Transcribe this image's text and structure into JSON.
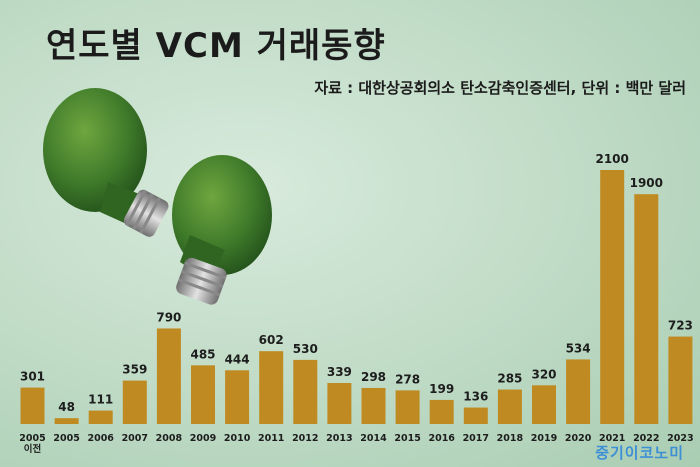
{
  "title": "연도별 VCM 거래동향",
  "source": "자료 : 대한상공회의소 탄소감축인증센터, 단위 : 백만 달러",
  "watermark": "중기이코노미",
  "colors": {
    "bar": "#c08a22",
    "background": "#c3ddc9",
    "watermark": "#3d8fd6"
  },
  "chart_data": {
    "type": "bar",
    "categories": [
      "2005 이전",
      "2005",
      "2006",
      "2007",
      "2008",
      "2009",
      "2010",
      "2011",
      "2012",
      "2013",
      "2014",
      "2015",
      "2016",
      "2017",
      "2018",
      "2019",
      "2020",
      "2021",
      "2022",
      "2023"
    ],
    "values": [
      301,
      48,
      111,
      359,
      790,
      485,
      444,
      602,
      530,
      339,
      298,
      278,
      199,
      136,
      285,
      320,
      534,
      2100,
      1900,
      723
    ],
    "title": "연도별 VCM 거래동향",
    "subtitle": "자료 : 대한상공회의소 탄소감축인증센터, 단위 : 백만 달러",
    "xlabel": "",
    "ylabel": "",
    "ylim": [
      0,
      2100
    ],
    "grid": false,
    "legend": "none"
  }
}
